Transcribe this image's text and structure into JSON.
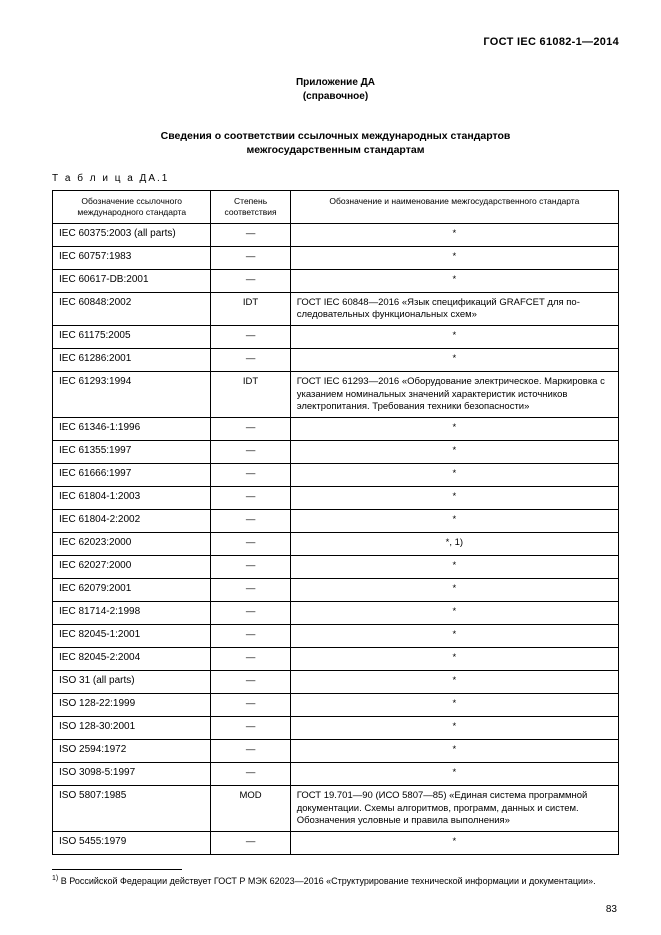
{
  "doc_id": "ГОСТ  IEC 61082-1—2014",
  "annex_line1": "Приложение ДА",
  "annex_line2": "(справочное)",
  "section_title_line1": "Сведения о соответствии ссылочных международных стандартов",
  "section_title_line2": "межгосударственным стандартам",
  "table_label": "Т а б л и ц а   ДА.1",
  "columns": {
    "c1_l1": "Обозначение ссылочного",
    "c1_l2": "международного стандарта",
    "c2_l1": "Степень",
    "c2_l2": "соответствия",
    "c3": "Обозначение и наименование межгосударственного стандарта"
  },
  "col_widths": {
    "c1": "28%",
    "c2": "14%",
    "c3": "58%"
  },
  "rows": [
    {
      "ref": "IEC 60375:2003 (all parts)",
      "deg": "—",
      "desc": "*",
      "star": true
    },
    {
      "ref": "IEC 60757:1983",
      "deg": "—",
      "desc": "*",
      "star": true
    },
    {
      "ref": "IEC 60617-DB:2001",
      "deg": "—",
      "desc": "*",
      "star": true
    },
    {
      "ref": "IEC 60848:2002",
      "deg": "IDT",
      "desc": "ГОСТ IEC 60848—2016 «Язык спецификаций GRAFСЕТ для по­следовательных функциональных схем»",
      "star": false
    },
    {
      "ref": "IEC 61175:2005",
      "deg": "—",
      "desc": "*",
      "star": true
    },
    {
      "ref": "IEC 61286:2001",
      "deg": "—",
      "desc": "*",
      "star": true
    },
    {
      "ref": "IEC 61293:1994",
      "deg": "IDT",
      "desc": "ГОСТ IEC 61293—2016 «Оборудование электрическое. Марки­ровка с указанием номинальных значений характеристик источ­ников электропитания. Требования техники безопасности»",
      "star": false
    },
    {
      "ref": "IEC 61346-1:1996",
      "deg": "—",
      "desc": "*",
      "star": true
    },
    {
      "ref": "IEC 61355:1997",
      "deg": "—",
      "desc": "*",
      "star": true
    },
    {
      "ref": "IEC 61666:1997",
      "deg": "—",
      "desc": "*",
      "star": true
    },
    {
      "ref": "IEC 61804-1:2003",
      "deg": "—",
      "desc": "*",
      "star": true
    },
    {
      "ref": "IEC 61804-2:2002",
      "deg": "—",
      "desc": "*",
      "star": true
    },
    {
      "ref": "IEC 62023:2000",
      "deg": "—",
      "desc": "*, 1)",
      "star": true
    },
    {
      "ref": "IEC 62027:2000",
      "deg": "—",
      "desc": "*",
      "star": true
    },
    {
      "ref": "IEC 62079:2001",
      "deg": "—",
      "desc": "*",
      "star": true
    },
    {
      "ref": "IEC 81714-2:1998",
      "deg": "—",
      "desc": "*",
      "star": true
    },
    {
      "ref": "IEC 82045-1:2001",
      "deg": "—",
      "desc": "*",
      "star": true
    },
    {
      "ref": "IEC 82045-2:2004",
      "deg": "—",
      "desc": "*",
      "star": true
    },
    {
      "ref": "ISO 31 (all parts)",
      "deg": "—",
      "desc": "*",
      "star": true
    },
    {
      "ref": "ISO 128-22:1999",
      "deg": "—",
      "desc": "*",
      "star": true
    },
    {
      "ref": "ISO 128-30:2001",
      "deg": "—",
      "desc": "*",
      "star": true
    },
    {
      "ref": "ISO 2594:1972",
      "deg": "—",
      "desc": "*",
      "star": true
    },
    {
      "ref": "ISO 3098-5:1997",
      "deg": "—",
      "desc": "*",
      "star": true
    },
    {
      "ref": "ISO 5807:1985",
      "deg": "MOD",
      "desc": "ГОСТ 19.701—90 (ИСО 5807—85) «Единая система программной документации. Схемы алгоритмов, программ, данных и систем. Обозначения условные и правила выполнения»",
      "star": false
    },
    {
      "ref": "ISO 5455:1979",
      "deg": "—",
      "desc": "*",
      "star": true
    }
  ],
  "footnote_marker": "1)",
  "footnote_text": " В Российской Федерации действует ГОСТ Р МЭК 62023—2016 «Структурирование технической информа­ции и документации».",
  "page_number": "83"
}
